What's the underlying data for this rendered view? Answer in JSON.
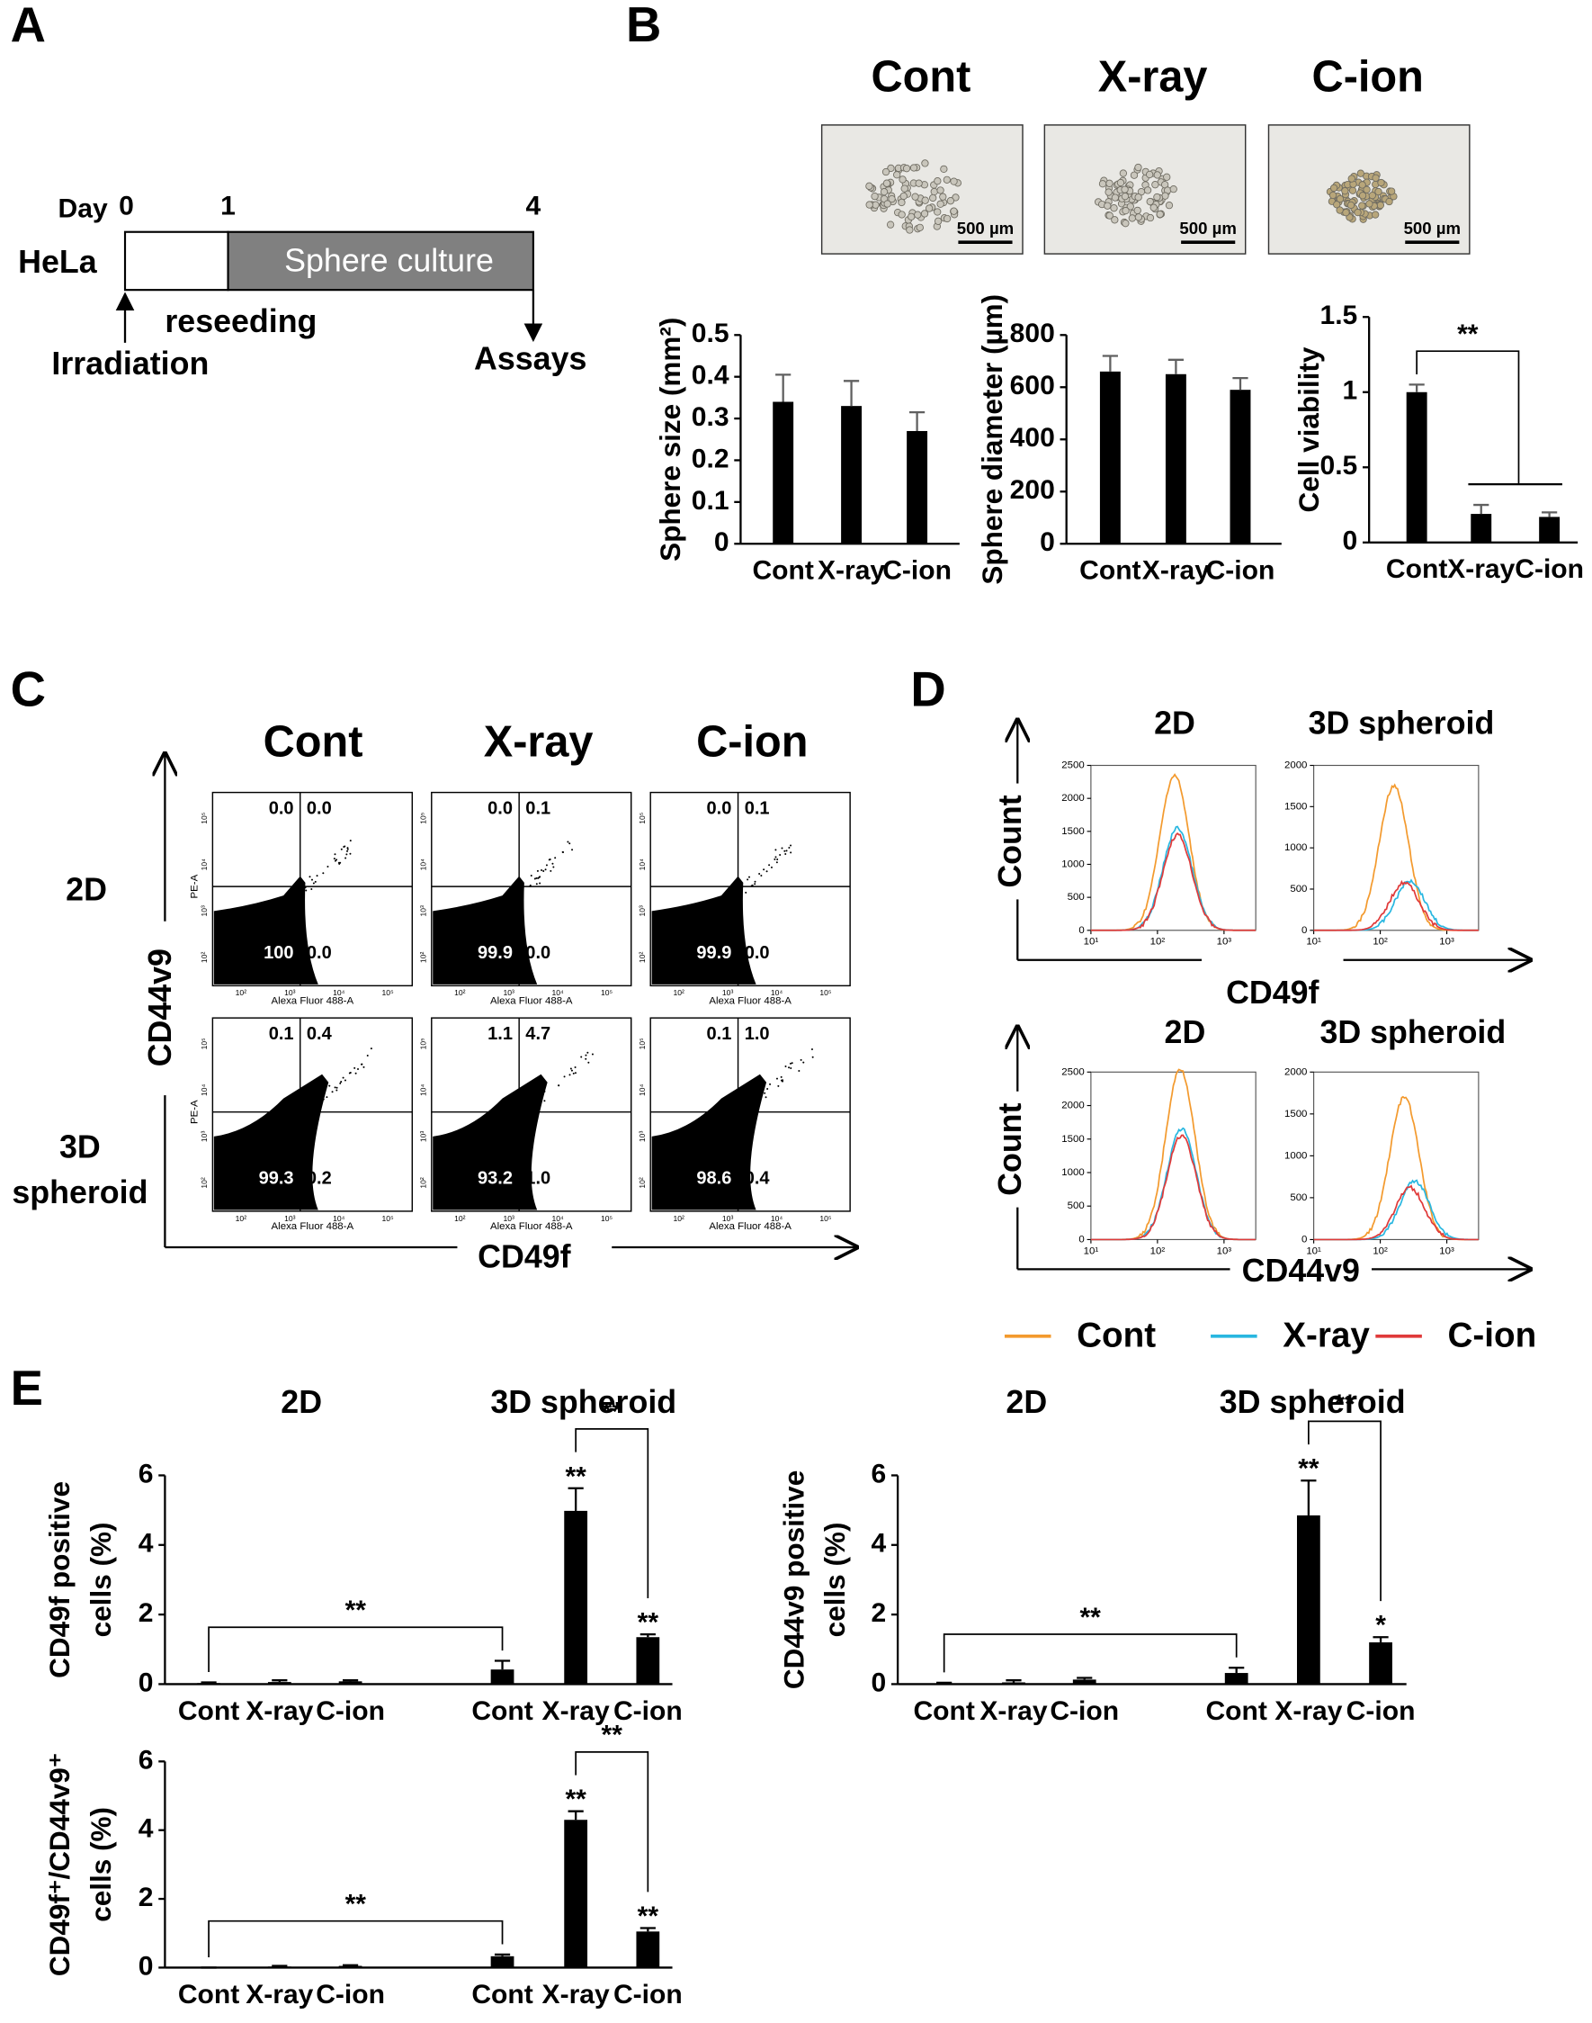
{
  "panel_labels": [
    "A",
    "B",
    "C",
    "D",
    "E"
  ],
  "timeline": {
    "day": "Day",
    "days": [
      "0",
      "1",
      "4"
    ],
    "cell_line": "HeLa",
    "phase": "Sphere culture",
    "reseeding": "reseeding",
    "irradiation": "Irradiation",
    "assays": "Assays"
  },
  "photos": {
    "titles": [
      "Cont",
      "X-ray",
      "C-ion"
    ],
    "scale_bar": "500 µm"
  },
  "chart_data": [
    {
      "type": "bar",
      "ylabel": [
        "Sphere size (mm²)"
      ],
      "categories": [
        "Cont",
        "X-ray",
        "C-ion"
      ],
      "values": [
        0.34,
        0.33,
        0.27
      ],
      "errors": [
        0.065,
        0.06,
        0.045
      ],
      "ylim": [
        0,
        0.5
      ],
      "yticks": [
        0,
        0.1,
        0.2,
        0.3,
        0.4,
        0.5
      ],
      "color": "#000000",
      "error_color": "#606060"
    },
    {
      "type": "bar",
      "ylabel": [
        "Sphere diameter (µm)"
      ],
      "categories": [
        "Cont",
        "X-ray",
        "C-ion"
      ],
      "values": [
        660,
        650,
        590
      ],
      "errors": [
        60,
        55,
        45
      ],
      "ylim": [
        0,
        800
      ],
      "yticks": [
        0,
        200,
        400,
        600,
        800
      ],
      "color": "#000000",
      "error_color": "#606060"
    },
    {
      "type": "bar",
      "ylabel": [
        "Cell viability"
      ],
      "categories": [
        "Cont",
        "X-ray",
        "C-ion"
      ],
      "values": [
        1.0,
        0.19,
        0.17
      ],
      "errors": [
        0.05,
        0.06,
        0.03
      ],
      "ylim": [
        0,
        1.5
      ],
      "yticks": [
        0,
        0.5,
        1,
        1.5
      ],
      "color": "#000000",
      "error_color": "#606060",
      "brackets": [
        {
          "text": "**",
          "from": [
            0
          ],
          "to": [
            1,
            2
          ]
        }
      ]
    },
    {
      "type": "bar",
      "groups": [
        "2D",
        "3D spheroid"
      ],
      "ylabel": [
        "CD49f positive",
        "cells (%)"
      ],
      "categories": [
        "Cont",
        "X-ray",
        "C-ion",
        "Cont",
        "X-ray",
        "C-ion"
      ],
      "values": [
        0.03,
        0.06,
        0.08,
        0.42,
        4.98,
        1.35
      ],
      "errors": [
        0.02,
        0.05,
        0.03,
        0.25,
        0.65,
        0.08
      ],
      "ylim": [
        0,
        6
      ],
      "yticks": [
        0,
        2,
        4,
        6
      ],
      "color": "#000000",
      "error_color": "#000000",
      "stars": [
        {
          "text": "**",
          "bar": 4
        },
        {
          "text": "**",
          "bar": 5
        }
      ],
      "brackets": [
        {
          "text": "**",
          "from": [
            0
          ],
          "to": [
            3
          ]
        },
        {
          "text": "**",
          "from": [
            4
          ],
          "to": [
            5
          ]
        }
      ]
    },
    {
      "type": "bar",
      "groups": [
        "2D",
        "3D spheroid"
      ],
      "ylabel": [
        "CD44v9 positive",
        "cells (%)"
      ],
      "categories": [
        "Cont",
        "X-ray",
        "C-ion",
        "Cont",
        "X-ray",
        "C-ion"
      ],
      "values": [
        0.02,
        0.05,
        0.13,
        0.32,
        4.85,
        1.2
      ],
      "errors": [
        0.02,
        0.06,
        0.05,
        0.15,
        1.0,
        0.15
      ],
      "ylim": [
        0,
        6
      ],
      "yticks": [
        0,
        2,
        4,
        6
      ],
      "color": "#000000",
      "error_color": "#000000",
      "stars": [
        {
          "text": "**",
          "bar": 4
        },
        {
          "text": "*",
          "bar": 5
        }
      ],
      "brackets": [
        {
          "text": "**",
          "from": [
            0
          ],
          "to": [
            3
          ]
        },
        {
          "text": "**",
          "from": [
            4
          ],
          "to": [
            5
          ]
        }
      ]
    },
    {
      "type": "bar",
      "ylabel": [
        "CD49f⁺/CD44v9⁺",
        "cells (%)"
      ],
      "categories": [
        "Cont",
        "X-ray",
        "C-ion",
        "Cont",
        "X-ray",
        "C-ion"
      ],
      "values": [
        0,
        0.03,
        0.05,
        0.33,
        4.3,
        1.05
      ],
      "errors": [
        0,
        0.02,
        0.02,
        0.05,
        0.25,
        0.1
      ],
      "ylim": [
        0,
        6
      ],
      "yticks": [
        0,
        2,
        4,
        6
      ],
      "color": "#000000",
      "error_color": "#000000",
      "stars": [
        {
          "text": "**",
          "bar": 4
        },
        {
          "text": "**",
          "bar": 5
        }
      ],
      "brackets": [
        {
          "text": "**",
          "from": [
            0
          ],
          "to": [
            3
          ]
        },
        {
          "text": "**",
          "from": [
            4
          ],
          "to": [
            5
          ]
        }
      ]
    }
  ],
  "flow": {
    "columns": [
      "Cont",
      "X-ray",
      "C-ion"
    ],
    "rows": [
      [
        "2D"
      ],
      [
        "3D",
        "spheroid"
      ]
    ],
    "y_axis": "CD44v9",
    "x_axis": "CD49f",
    "plot_ylabel": "PE-A",
    "plot_xlabel": "Alexa Fluor 488-A",
    "ticks": [
      "10²",
      "10³",
      "10⁴",
      "10⁵"
    ],
    "quadrants": [
      [
        [
          "0.0",
          "0.0",
          "100",
          "0.0"
        ],
        [
          "0.0",
          "0.1",
          "99.9",
          "0.0"
        ],
        [
          "0.0",
          "0.1",
          "99.9",
          "0.0"
        ]
      ],
      [
        [
          "0.1",
          "0.4",
          "99.3",
          "0.2"
        ],
        [
          "1.1",
          "4.7",
          "93.2",
          "1.0"
        ],
        [
          "0.1",
          "1.0",
          "98.6",
          "0.4"
        ]
      ]
    ]
  },
  "histograms": {
    "columns": [
      "2D",
      "3D spheroid"
    ],
    "markers": [
      "CD49f",
      "CD44v9"
    ],
    "ylabel": "Count",
    "xscale": "log",
    "xlim": [
      10,
      3000
    ],
    "xticks": [
      {
        "value": 10,
        "label": "10¹"
      },
      {
        "value": 100,
        "label": "10²"
      },
      {
        "value": 1000,
        "label": "10³"
      }
    ],
    "legend": [
      {
        "name": "Cont",
        "color": "#f39a2e"
      },
      {
        "name": "X-ray",
        "color": "#29b7e0"
      },
      {
        "name": "C-ion",
        "color": "#e03a3a"
      }
    ],
    "plots": [
      {
        "ylim": [
          0,
          2500
        ],
        "yticks": [
          0,
          500,
          1000,
          1500,
          2000,
          2500
        ],
        "peaks": [
          {
            "x": 180,
            "count": 2350
          },
          {
            "x": 200,
            "count": 1550
          },
          {
            "x": 200,
            "count": 1450
          }
        ]
      },
      {
        "ylim": [
          0,
          2000
        ],
        "yticks": [
          0,
          500,
          1000,
          1500,
          2000
        ],
        "peaks": [
          {
            "x": 160,
            "count": 1750
          },
          {
            "x": 280,
            "count": 600
          },
          {
            "x": 230,
            "count": 580
          }
        ]
      },
      {
        "ylim": [
          0,
          2500
        ],
        "yticks": [
          0,
          500,
          1000,
          1500,
          2000,
          2500
        ],
        "peaks": [
          {
            "x": 220,
            "count": 2550
          },
          {
            "x": 230,
            "count": 1650
          },
          {
            "x": 230,
            "count": 1550
          }
        ]
      },
      {
        "ylim": [
          0,
          2000
        ],
        "yticks": [
          0,
          500,
          1000,
          1500,
          2000
        ],
        "peaks": [
          {
            "x": 230,
            "count": 1700
          },
          {
            "x": 330,
            "count": 700
          },
          {
            "x": 280,
            "count": 620
          }
        ]
      }
    ]
  }
}
